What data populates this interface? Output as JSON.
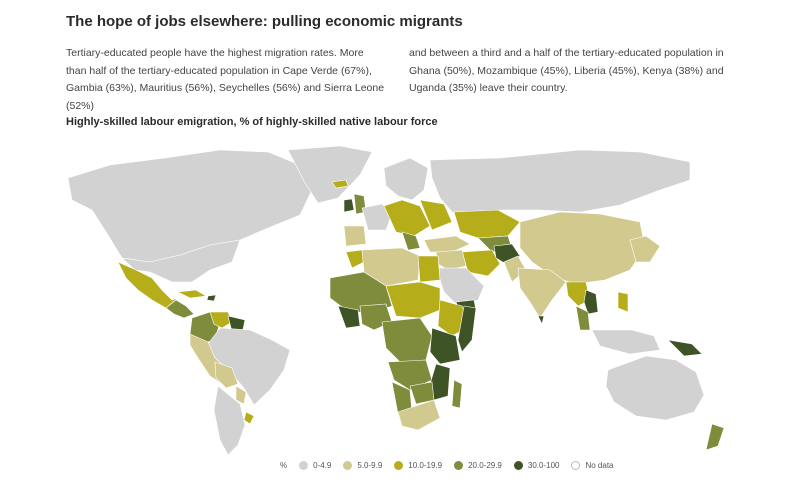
{
  "header": {
    "title": "The hope of jobs elsewhere: pulling economic migrants",
    "paragraph_left": "Tertiary-educated people have the highest migration rates. More than half of the tertiary-educated population in Cape Verde (67%), Gambia (63%), Mauritius (56%), Seychelles (56%) and Sierra Leone (52%)",
    "paragraph_right": "and between a third and a half of the tertiary-educated population in Ghana (50%), Mozambique (45%), Liberia (45%), Kenya (38%) and Uganda (35%) leave their country.",
    "map_title": "Highly-skilled labour emigration, % of highly-skilled native labour force"
  },
  "legend": {
    "unit": "%",
    "items": [
      {
        "label": "0-4.9",
        "color": "#d2d2d2"
      },
      {
        "label": "5.0-9.9",
        "color": "#d1c98e"
      },
      {
        "label": "10.0-19.9",
        "color": "#b5ae1a"
      },
      {
        "label": "20.0-29.9",
        "color": "#7e8c3c"
      },
      {
        "label": "30.0-100",
        "color": "#3f5426"
      },
      {
        "label": "No data",
        "color": "#ffffff"
      }
    ]
  },
  "map_data": {
    "classes": {
      "c0": "#d2d2d2",
      "c1": "#d1c98e",
      "c2": "#b5ae1a",
      "c3": "#7e8c3c",
      "c4": "#3f5426"
    }
  }
}
